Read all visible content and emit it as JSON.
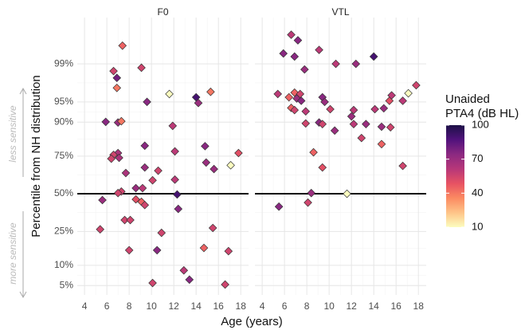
{
  "chart_data": {
    "type": "scatter",
    "xlabel": "Age (years)",
    "ylabel": "Percentile from NH distribution",
    "xlim": [
      3.35,
      18.7
    ],
    "xticks": [
      4,
      6,
      8,
      10,
      12,
      14,
      16,
      18
    ],
    "ylim": [
      3.5,
      99.92
    ],
    "yscale": "probit",
    "yticks": [
      {
        "value": 5,
        "label": "5%"
      },
      {
        "value": 10,
        "label": "10%"
      },
      {
        "value": 25,
        "label": "25%"
      },
      {
        "value": 50,
        "label": "50%"
      },
      {
        "value": 75,
        "label": "75%"
      },
      {
        "value": 90,
        "label": "90%"
      },
      {
        "value": 95,
        "label": "95%"
      },
      {
        "value": 99,
        "label": "99%"
      }
    ],
    "grid": true,
    "hline": 50,
    "annotations": [
      "less sensitive",
      "more sensitive"
    ],
    "colorbar": {
      "title": [
        "Unaided",
        "PTA4 (dB HL)"
      ],
      "lim": [
        10,
        100
      ],
      "ticks": [
        10,
        40,
        70,
        100
      ],
      "colors": [
        "#fcfdbf",
        "#fec488",
        "#fb8a62",
        "#e75263",
        "#b73779",
        "#8c2981",
        "#51127c",
        "#1d1147"
      ]
    },
    "facets": [
      {
        "title": "F0",
        "x": [
          7.4,
          6.6,
          6.9,
          6.9,
          9.1,
          11.6,
          14.0,
          14.2,
          15.3,
          9.6,
          5.9,
          7.0,
          7.3,
          11.9,
          9.4,
          14.8,
          7.0,
          6.6,
          6.4,
          7.1,
          12.1,
          17.8,
          17.1,
          14.9,
          15.6,
          9.4,
          10.6,
          7.7,
          10.1,
          12.1,
          8.6,
          9.2,
          7.3,
          7.0,
          12.3,
          5.6,
          8.6,
          9.1,
          9.4,
          12.4,
          7.6,
          8.1,
          15.5,
          5.4,
          10.9,
          8.0,
          10.5,
          14.7,
          16.9,
          12.9,
          13.4,
          10.1,
          16.6
        ],
        "y": [
          99.6,
          98.6,
          98.1,
          97.1,
          98.8,
          96.3,
          95.8,
          94.8,
          96.6,
          95,
          90.1,
          89.9,
          90.3,
          88.8,
          80.5,
          80.3,
          76.7,
          75.7,
          73.5,
          74,
          77.6,
          76.7,
          69.5,
          71.2,
          67.1,
          68.1,
          66,
          64.5,
          59.5,
          60,
          54,
          54,
          51.6,
          50.5,
          49.5,
          45.5,
          46,
          44.3,
          42,
          39.3,
          31.9,
          31.9,
          27,
          26.2,
          24.2,
          15.6,
          15.6,
          16.6,
          15.2,
          8.5,
          6.2,
          5.5,
          5.2
        ],
        "pta": [
          45,
          55,
          80,
          40,
          55,
          10,
          90,
          70,
          40,
          75,
          75,
          70,
          40,
          60,
          75,
          75,
          65,
          55,
          55,
          65,
          60,
          50,
          10,
          70,
          70,
          70,
          55,
          65,
          55,
          60,
          70,
          60,
          55,
          55,
          90,
          70,
          50,
          45,
          55,
          75,
          55,
          55,
          55,
          55,
          55,
          55,
          75,
          45,
          55,
          60,
          75,
          55,
          55
        ]
      },
      {
        "title": "VTL",
        "x": [
          6.6,
          7.2,
          5.9,
          6.9,
          9.1,
          10.6,
          12.4,
          14.0,
          7.8,
          5.4,
          6.4,
          6.9,
          7.4,
          7.1,
          7.5,
          9.4,
          9.6,
          6.6,
          6.9,
          7.9,
          10.1,
          12.2,
          12.0,
          14.1,
          14.9,
          15.4,
          15.6,
          16.6,
          17.1,
          17.8,
          7.9,
          9.1,
          9.4,
          10.5,
          12.2,
          13.3,
          14.7,
          15.5,
          12.9,
          14.7,
          8.6,
          9.4,
          16.6,
          8.4,
          11.6,
          5.5,
          8.1
        ],
        "y": [
          99.78,
          99.7,
          99.4,
          99.3,
          99.5,
          99,
          99,
          99.3,
          98.7,
          96.3,
          95.8,
          96.5,
          96.3,
          95.6,
          95.2,
          95.8,
          95,
          93.8,
          93.3,
          93,
          93.5,
          93.3,
          91.7,
          93.5,
          93.7,
          95.2,
          96.1,
          95.2,
          96.4,
          97.4,
          89.6,
          89.9,
          89.4,
          87.1,
          89.4,
          89.4,
          88.5,
          88.3,
          84.1,
          81.3,
          77.1,
          68.1,
          69.1,
          50.5,
          50,
          40.9,
          43.7
        ],
        "pta": [
          60,
          75,
          75,
          75,
          60,
          60,
          70,
          90,
          70,
          60,
          45,
          45,
          55,
          70,
          75,
          75,
          70,
          45,
          55,
          60,
          55,
          60,
          70,
          60,
          70,
          50,
          60,
          60,
          10,
          55,
          55,
          75,
          55,
          70,
          60,
          70,
          70,
          55,
          55,
          45,
          45,
          50,
          55,
          70,
          10,
          75,
          55
        ]
      }
    ]
  }
}
